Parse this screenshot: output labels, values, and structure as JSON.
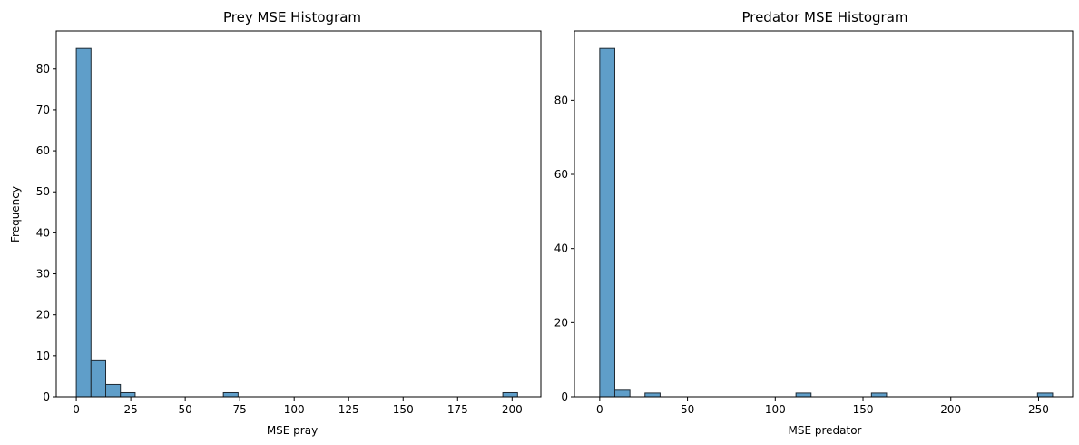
{
  "chart_data": [
    {
      "type": "bar",
      "title": "Prey MSE Histogram",
      "xlabel": "MSE pray",
      "ylabel": "Frequency",
      "xlim": [
        -9.2,
        213.2
      ],
      "ylim": [
        0,
        89.25
      ],
      "xticks": [
        0,
        25,
        50,
        75,
        100,
        125,
        150,
        175,
        200
      ],
      "yticks": [
        0,
        10,
        20,
        30,
        40,
        50,
        60,
        70,
        80
      ],
      "bin_width": 6.75,
      "bins": [
        {
          "x0": 0.0,
          "count": 85
        },
        {
          "x0": 6.75,
          "count": 9
        },
        {
          "x0": 13.5,
          "count": 3
        },
        {
          "x0": 20.25,
          "count": 1
        },
        {
          "x0": 27.0,
          "count": 0
        },
        {
          "x0": 33.75,
          "count": 0
        },
        {
          "x0": 40.5,
          "count": 0
        },
        {
          "x0": 47.25,
          "count": 0
        },
        {
          "x0": 54.0,
          "count": 0
        },
        {
          "x0": 60.75,
          "count": 0
        },
        {
          "x0": 67.5,
          "count": 1
        },
        {
          "x0": 74.25,
          "count": 0
        },
        {
          "x0": 81.0,
          "count": 0
        },
        {
          "x0": 87.75,
          "count": 0
        },
        {
          "x0": 94.5,
          "count": 0
        },
        {
          "x0": 101.25,
          "count": 0
        },
        {
          "x0": 108.0,
          "count": 0
        },
        {
          "x0": 114.75,
          "count": 0
        },
        {
          "x0": 121.5,
          "count": 0
        },
        {
          "x0": 128.25,
          "count": 0
        },
        {
          "x0": 135.0,
          "count": 0
        },
        {
          "x0": 141.75,
          "count": 0
        },
        {
          "x0": 148.5,
          "count": 0
        },
        {
          "x0": 155.25,
          "count": 0
        },
        {
          "x0": 162.0,
          "count": 0
        },
        {
          "x0": 168.75,
          "count": 0
        },
        {
          "x0": 175.5,
          "count": 0
        },
        {
          "x0": 182.25,
          "count": 0
        },
        {
          "x0": 189.0,
          "count": 0
        },
        {
          "x0": 195.75,
          "count": 1
        }
      ],
      "bar_color": "#5f9ec9",
      "edge_color": "#1f2a33",
      "grid": false
    },
    {
      "type": "bar",
      "title": "Predator MSE Histogram",
      "xlabel": "MSE predator",
      "ylabel": "",
      "xlim": [
        -14.4,
        269.4
      ],
      "ylim": [
        0,
        98.7
      ],
      "xticks": [
        0,
        50,
        100,
        150,
        200,
        250
      ],
      "yticks": [
        0,
        20,
        40,
        60,
        80
      ],
      "bin_width": 8.6,
      "bins": [
        {
          "x0": 0.0,
          "count": 94
        },
        {
          "x0": 8.6,
          "count": 2
        },
        {
          "x0": 17.2,
          "count": 0
        },
        {
          "x0": 25.8,
          "count": 1
        },
        {
          "x0": 34.4,
          "count": 0
        },
        {
          "x0": 43.0,
          "count": 0
        },
        {
          "x0": 51.6,
          "count": 0
        },
        {
          "x0": 60.2,
          "count": 0
        },
        {
          "x0": 68.8,
          "count": 0
        },
        {
          "x0": 77.4,
          "count": 0
        },
        {
          "x0": 86.0,
          "count": 0
        },
        {
          "x0": 94.6,
          "count": 0
        },
        {
          "x0": 103.2,
          "count": 0
        },
        {
          "x0": 111.8,
          "count": 1
        },
        {
          "x0": 120.4,
          "count": 0
        },
        {
          "x0": 129.0,
          "count": 0
        },
        {
          "x0": 137.6,
          "count": 0
        },
        {
          "x0": 146.2,
          "count": 0
        },
        {
          "x0": 154.8,
          "count": 1
        },
        {
          "x0": 163.4,
          "count": 0
        },
        {
          "x0": 172.0,
          "count": 0
        },
        {
          "x0": 180.6,
          "count": 0
        },
        {
          "x0": 189.2,
          "count": 0
        },
        {
          "x0": 197.8,
          "count": 0
        },
        {
          "x0": 206.4,
          "count": 0
        },
        {
          "x0": 215.0,
          "count": 0
        },
        {
          "x0": 223.6,
          "count": 0
        },
        {
          "x0": 232.2,
          "count": 0
        },
        {
          "x0": 240.8,
          "count": 0
        },
        {
          "x0": 249.4,
          "count": 1
        }
      ],
      "bar_color": "#5f9ec9",
      "edge_color": "#1f2a33",
      "grid": false
    }
  ]
}
